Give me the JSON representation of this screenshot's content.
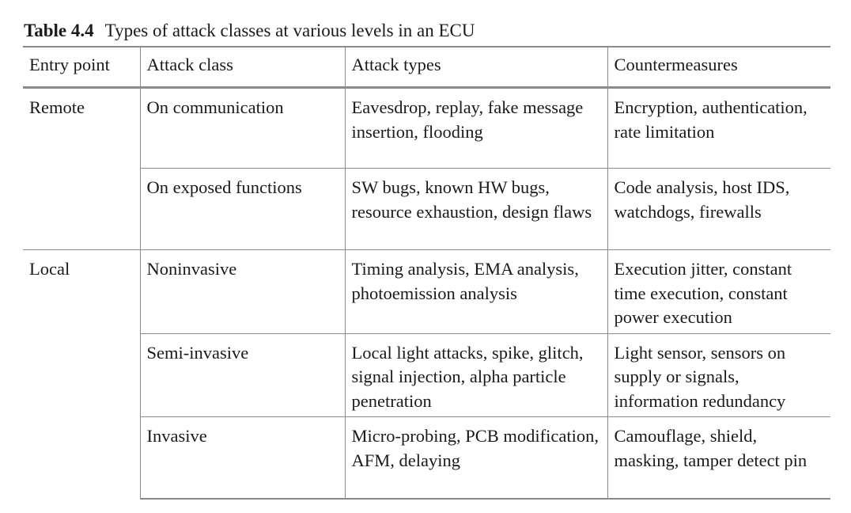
{
  "caption": {
    "label": "Table 4.4",
    "title": "Types of attack classes at various levels in an ECU"
  },
  "table": {
    "headers": [
      "Entry point",
      "Attack class",
      "Attack types",
      "Countermeasures"
    ],
    "groups": [
      {
        "entry_point": "Remote",
        "rows": [
          {
            "attack_class": "On communication",
            "attack_types": "Eavesdrop, replay, fake message insertion, flooding",
            "countermeasures": "Encryption, authentication, rate limitation"
          },
          {
            "attack_class": "On exposed functions",
            "attack_types": "SW bugs, known HW bugs, resource exhaustion, design flaws",
            "countermeasures": "Code analysis, host IDS, watchdogs, firewalls"
          }
        ]
      },
      {
        "entry_point": "Local",
        "rows": [
          {
            "attack_class": "Noninvasive",
            "attack_types": "Timing analysis, EMA analysis, photoemission analysis",
            "countermeasures": "Execution jitter, constant time execution, constant power execution"
          },
          {
            "attack_class": "Semi-invasive",
            "attack_types": "Local light attacks, spike, glitch, signal injection, alpha particle penetration",
            "countermeasures": "Light sensor, sensors on supply or signals, information redundancy"
          },
          {
            "attack_class": "Invasive",
            "attack_types": "Micro-probing, PCB modification, AFM, delaying",
            "countermeasures": "Camouflage, shield, masking, tamper detect pin"
          }
        ]
      }
    ]
  }
}
